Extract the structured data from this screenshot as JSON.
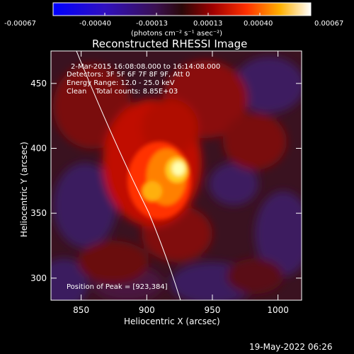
{
  "colorbar": {
    "tick_labels": [
      "-0.00067",
      "-0.00040",
      "-0.00013",
      "0.00013",
      "0.00040",
      "0.00067"
    ],
    "unit_label": "(photons cm⁻² s⁻¹ asec⁻²)"
  },
  "plot": {
    "title": "Reconstructed RHESSI Image",
    "x_axis_label": "Heliocentric X (arcsec)",
    "y_axis_label": "Heliocentric Y (arcsec)",
    "x_ticks": [
      "850",
      "900",
      "950",
      "1000"
    ],
    "y_ticks": [
      "450",
      "400",
      "350",
      "300"
    ],
    "x_tick_values": [
      850,
      900,
      950,
      1000
    ],
    "y_tick_values": [
      450,
      400,
      350,
      300
    ],
    "x_range": [
      827,
      1018
    ],
    "y_range": [
      283,
      475
    ]
  },
  "annotations": {
    "time_range": "2-Mar-2015 16:08:08.000 to 16:14:08.000",
    "detectors": "Detectors: 3F 5F 6F 7F 8F 9F, Att 0",
    "energy_range": "Energy Range: 12.0 - 25.0 keV",
    "clean_counts": "Clean    Total counts: 8.85E+03",
    "peak_position": "Position of Peak = [923,384]"
  },
  "footer": {
    "timestamp": "19-May-2022 06:26"
  },
  "colors": {
    "background": "#000000",
    "limb_line": "#ffffff"
  }
}
